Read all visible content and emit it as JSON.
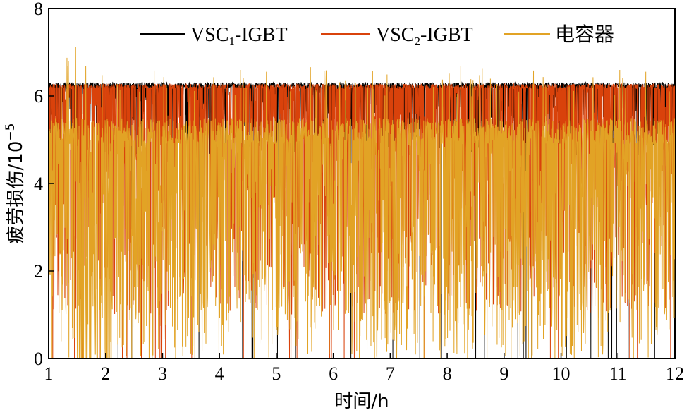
{
  "chart_data": {
    "type": "line",
    "xlabel": "时间/h",
    "ylabel_main": "疲劳损伤/10",
    "ylabel_sup": "−5",
    "xlim": [
      1,
      12
    ],
    "ylim": [
      0,
      8
    ],
    "xticks": [
      "1",
      "2",
      "3",
      "4",
      "5",
      "6",
      "7",
      "8",
      "9",
      "10",
      "11",
      "12"
    ],
    "yticks": [
      "0",
      "2",
      "4",
      "6",
      "8"
    ],
    "grid": false,
    "legend_position": "top-right",
    "series": [
      {
        "name": "VSC1-IGBT",
        "name_base": "VSC",
        "name_sub": "1",
        "name_rest": "-IGBT",
        "color": "#000000",
        "baseline": 6.25,
        "dip_min": 4.6,
        "dip_rate": 0.35,
        "spike_max": 6.32
      },
      {
        "name": "VSC2-IGBT",
        "name_base": "VSC",
        "name_sub": "2",
        "name_rest": "-IGBT",
        "color": "#d9420b",
        "baseline": 6.22,
        "dip_min": 1.0,
        "dip_rate": 0.45,
        "spike_max": 6.32
      },
      {
        "name": "电容器",
        "name_base": "电容器",
        "name_sub": "",
        "name_rest": "",
        "color": "#e2a325",
        "baseline": 5.2,
        "dip_min": 0.3,
        "dip_rate": 0.6,
        "spike_max": 7.3
      }
    ],
    "annotations": {
      "capacitor_peak": {
        "x": 1.45,
        "y": 7.3
      },
      "series_lower_bound": 0
    }
  }
}
